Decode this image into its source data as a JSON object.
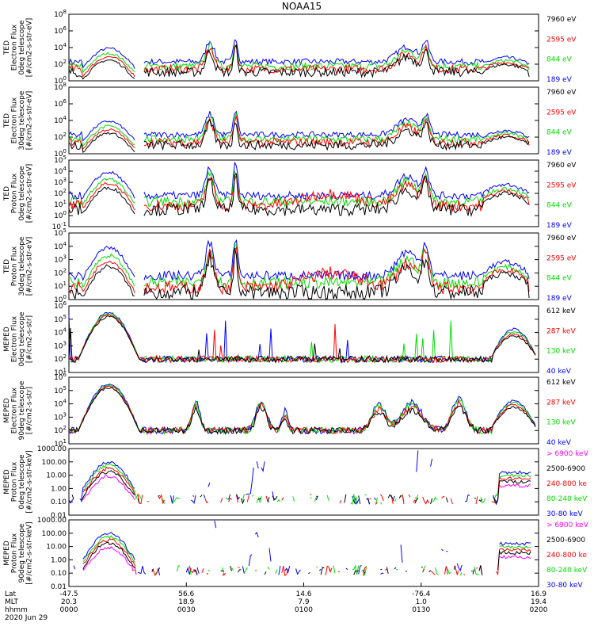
{
  "title": "NOAA15",
  "colors": {
    "black": "#000000",
    "red": "#ff0000",
    "green": "#00dd00",
    "blue": "#0000ff",
    "magenta": "#ff00ff"
  },
  "chart_data": [
    {
      "type": "line",
      "ylabel": [
        "TED",
        "Electron Flux",
        "0deg telescope",
        "[#/cm2-s-str-eV]"
      ],
      "ylim": [
        1,
        100000000
      ],
      "scale": "log",
      "tick_labels": [
        "10^0",
        "10^2",
        "10^4",
        "10^6",
        "10^8"
      ],
      "legend": [
        {
          "name": "7960 eV",
          "color": "black"
        },
        {
          "name": "2595 eV",
          "color": "red"
        },
        {
          "name": "844 eV",
          "color": "green"
        },
        {
          "name": "189 eV",
          "color": "blue"
        }
      ]
    },
    {
      "type": "line",
      "ylabel": [
        "TED",
        "Electron Flux",
        "30deg telescope",
        "[#/cm2-s-str-eV]"
      ],
      "ylim": [
        1,
        100000000
      ],
      "scale": "log",
      "tick_labels": [
        "10^0",
        "10^2",
        "10^4",
        "10^6",
        "10^8"
      ],
      "legend": [
        {
          "name": "7960 eV",
          "color": "black"
        },
        {
          "name": "2595 eV",
          "color": "red"
        },
        {
          "name": "844 eV",
          "color": "green"
        },
        {
          "name": "189 eV",
          "color": "blue"
        }
      ]
    },
    {
      "type": "line",
      "ylabel": [
        "TED",
        "Proton Flux",
        "0deg telescope",
        "[#/cm2-s-str-eV]"
      ],
      "ylim": [
        0.1,
        100000
      ],
      "scale": "log",
      "tick_labels": [
        "10^-1",
        "10^0",
        "10^1",
        "10^2",
        "10^3",
        "10^4",
        "10^5"
      ],
      "legend": [
        {
          "name": "7960 eV",
          "color": "black"
        },
        {
          "name": "2595 eV",
          "color": "red"
        },
        {
          "name": "844 eV",
          "color": "green"
        },
        {
          "name": "189 eV",
          "color": "blue"
        }
      ]
    },
    {
      "type": "line",
      "ylabel": [
        "TED",
        "Proton Flux",
        "30deg telescope",
        "[#/cm2-s-str-eV]"
      ],
      "ylim": [
        1,
        100000
      ],
      "scale": "log",
      "tick_labels": [
        "10^0",
        "10^1",
        "10^2",
        "10^3",
        "10^4",
        "10^5"
      ],
      "legend": [
        {
          "name": "7960 eV",
          "color": "black"
        },
        {
          "name": "2595 eV",
          "color": "red"
        },
        {
          "name": "844 eV",
          "color": "green"
        },
        {
          "name": "189 eV",
          "color": "blue"
        }
      ]
    },
    {
      "type": "line",
      "ylabel": [
        "MEPED",
        "Electron Flux",
        "0deg telescope",
        "[#/cm2-s-str]"
      ],
      "ylim": [
        1,
        1000000
      ],
      "scale": "log",
      "tick_labels": [
        "10^1",
        "10^2",
        "10^3",
        "10^4",
        "10^5",
        "10^6"
      ],
      "legend": [
        {
          "name": "612 keV",
          "color": "black"
        },
        {
          "name": "287 keV",
          "color": "red"
        },
        {
          "name": "130 keV",
          "color": "green"
        },
        {
          "name": "40 keV",
          "color": "blue"
        }
      ]
    },
    {
      "type": "line",
      "ylabel": [
        "MEPED",
        "Electron Flux",
        "90deg telescope",
        "[#/cm2-s-str]"
      ],
      "ylim": [
        1,
        1000000
      ],
      "scale": "log",
      "tick_labels": [
        "10^1",
        "10^2",
        "10^3",
        "10^4",
        "10^5",
        "10^6"
      ],
      "legend": [
        {
          "name": "612 keV",
          "color": "black"
        },
        {
          "name": "287 keV",
          "color": "red"
        },
        {
          "name": "130 keV",
          "color": "green"
        },
        {
          "name": "40 keV",
          "color": "blue"
        }
      ]
    },
    {
      "type": "line",
      "ylabel": [
        "MEPED",
        "Proton Flux",
        "0deg telescope",
        "[#/cm2-s-str-keV]"
      ],
      "ylim": [
        0.01,
        1000
      ],
      "scale": "log",
      "tick_labels": [
        "0.01",
        "0.10",
        "1.00",
        "10.00",
        "100.00",
        "1000.00"
      ],
      "legend": [
        {
          "name": "> 6900 keV",
          "color": "magenta"
        },
        {
          "name": "2500-6900",
          "color": "black"
        },
        {
          "name": "240-800 ke",
          "color": "red"
        },
        {
          "name": "80-240 keV",
          "color": "green"
        },
        {
          "name": "30-80 keV",
          "color": "blue"
        }
      ]
    },
    {
      "type": "line",
      "ylabel": [
        "MEPED",
        "Proton Flux",
        "90deg telescope",
        "[#/cm2-s-str-keV]"
      ],
      "ylim": [
        0.01,
        1000
      ],
      "scale": "log",
      "tick_labels": [
        "0.01",
        "0.10",
        "1.00",
        "10.00",
        "100.00",
        "1000.00"
      ],
      "legend": [
        {
          "name": "> 6900 keV",
          "color": "magenta"
        },
        {
          "name": "2500-6900",
          "color": "black"
        },
        {
          "name": "240-800 ke",
          "color": "red"
        },
        {
          "name": "80-240 keV",
          "color": "green"
        },
        {
          "name": "30-80 keV",
          "color": "blue"
        }
      ]
    }
  ],
  "x_axis": {
    "row_labels": [
      "Lat",
      "MLT",
      "hhmm"
    ],
    "date": "2020 Jun 29",
    "ticks": [
      {
        "t": 0,
        "lat": "-47.5",
        "mlt": "20.3",
        "hhmm": "0000"
      },
      {
        "t": 0.25,
        "lat": "56.6",
        "mlt": "18.9",
        "hhmm": "0030"
      },
      {
        "t": 0.5,
        "lat": "14.6",
        "mlt": "7.9",
        "hhmm": "0100"
      },
      {
        "t": 0.75,
        "lat": "-76.4",
        "mlt": "1.0",
        "hhmm": "0130"
      },
      {
        "t": 1,
        "lat": "16.9",
        "mlt": "19.4",
        "hhmm": "0200"
      }
    ]
  }
}
